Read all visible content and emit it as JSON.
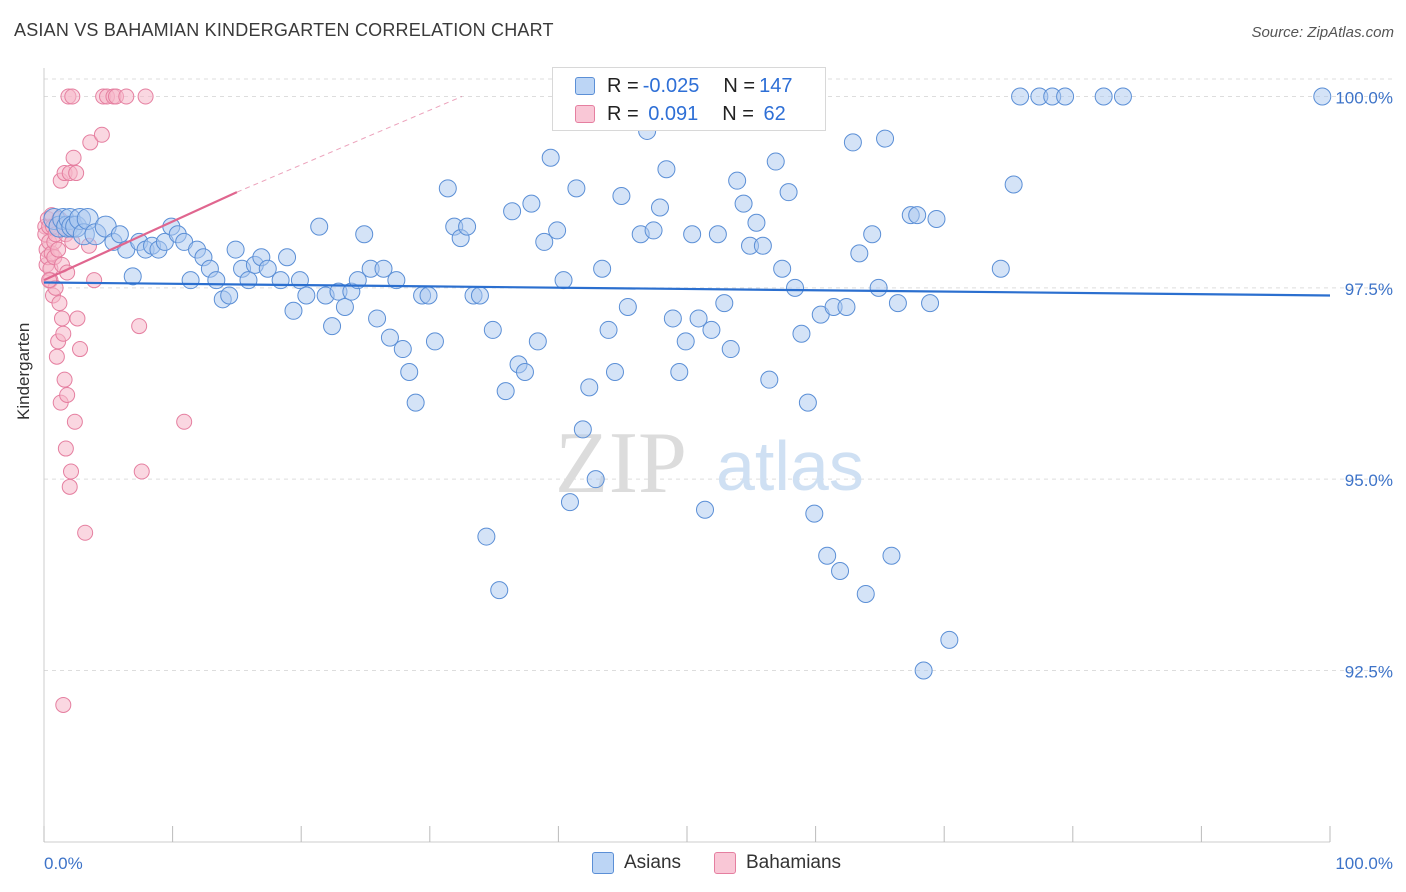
{
  "title": "ASIAN VS BAHAMIAN KINDERGARTEN CORRELATION CHART",
  "source": "Source: ZipAtlas.com",
  "watermark": {
    "zip": "ZIP",
    "atlas": "atlas"
  },
  "legend": {
    "asians": {
      "r_label": "R = ",
      "r_value": "-0.025",
      "n_label": "N = ",
      "n_value": "147"
    },
    "bahamians": {
      "r_label": "R = ",
      "r_value": " 0.091",
      "n_label": "N = ",
      "n_value": " 62"
    }
  },
  "colors": {
    "asian_fill": "#a9c8f0",
    "asian_stroke": "#5b8fd6",
    "asian_line": "#2b6fcf",
    "bahamian_fill": "#f6b6c9",
    "bahamian_stroke": "#e57fa0",
    "bahamian_line": "#e0668f",
    "tick_label": "#3d73c8"
  },
  "chart_data": {
    "type": "scatter",
    "title": "ASIAN VS BAHAMIAN KINDERGARTEN CORRELATION CHART",
    "xlabel": "",
    "ylabel": "Kindergarten",
    "xlim": [
      0,
      100
    ],
    "ylim": [
      90.0,
      100.3
    ],
    "x_tick_labels": [
      "0.0%",
      "100.0%"
    ],
    "y_ticks": [
      92.5,
      95.0,
      97.5,
      100.0
    ],
    "y_tick_labels": [
      "92.5%",
      "95.0%",
      "97.5%",
      "100.0%"
    ],
    "series": [
      {
        "name": "Asians",
        "trend": {
          "x": [
            0,
            100
          ],
          "y": [
            97.57,
            97.4
          ],
          "dashed_extension": false
        },
        "points": [
          [
            0.8,
            98.4
          ],
          [
            1.2,
            98.3
          ],
          [
            1.5,
            98.4
          ],
          [
            1.8,
            98.3
          ],
          [
            2.0,
            98.4
          ],
          [
            2.2,
            98.3
          ],
          [
            2.5,
            98.3
          ],
          [
            2.8,
            98.4
          ],
          [
            3.1,
            98.2
          ],
          [
            3.4,
            98.4
          ],
          [
            4.0,
            98.2
          ],
          [
            4.8,
            98.3
          ],
          [
            5.4,
            98.1
          ],
          [
            5.9,
            98.2
          ],
          [
            6.4,
            98.0
          ],
          [
            6.9,
            97.65
          ],
          [
            7.4,
            98.1
          ],
          [
            7.9,
            98.0
          ],
          [
            8.4,
            98.05
          ],
          [
            8.9,
            98.0
          ],
          [
            9.4,
            98.1
          ],
          [
            9.9,
            98.3
          ],
          [
            10.4,
            98.2
          ],
          [
            10.9,
            98.1
          ],
          [
            11.4,
            97.6
          ],
          [
            11.9,
            98.0
          ],
          [
            12.4,
            97.9
          ],
          [
            12.9,
            97.75
          ],
          [
            13.4,
            97.6
          ],
          [
            13.9,
            97.35
          ],
          [
            14.4,
            97.4
          ],
          [
            14.9,
            98.0
          ],
          [
            15.4,
            97.75
          ],
          [
            15.9,
            97.6
          ],
          [
            16.4,
            97.8
          ],
          [
            16.9,
            97.9
          ],
          [
            17.4,
            97.75
          ],
          [
            18.4,
            97.6
          ],
          [
            18.9,
            97.9
          ],
          [
            19.4,
            97.2
          ],
          [
            19.9,
            97.6
          ],
          [
            20.4,
            97.4
          ],
          [
            21.4,
            98.3
          ],
          [
            21.9,
            97.4
          ],
          [
            22.4,
            97.0
          ],
          [
            22.9,
            97.45
          ],
          [
            23.4,
            97.25
          ],
          [
            23.9,
            97.45
          ],
          [
            24.4,
            97.6
          ],
          [
            24.9,
            98.2
          ],
          [
            25.4,
            97.75
          ],
          [
            25.9,
            97.1
          ],
          [
            26.4,
            97.75
          ],
          [
            26.9,
            96.85
          ],
          [
            27.4,
            97.6
          ],
          [
            27.9,
            96.7
          ],
          [
            28.4,
            96.4
          ],
          [
            28.9,
            96.0
          ],
          [
            29.4,
            97.4
          ],
          [
            29.9,
            97.4
          ],
          [
            30.4,
            96.8
          ],
          [
            31.4,
            98.8
          ],
          [
            31.9,
            98.3
          ],
          [
            32.4,
            98.15
          ],
          [
            32.9,
            98.3
          ],
          [
            33.4,
            97.4
          ],
          [
            33.9,
            97.4
          ],
          [
            34.4,
            94.25
          ],
          [
            34.9,
            96.95
          ],
          [
            35.4,
            93.55
          ],
          [
            35.9,
            96.15
          ],
          [
            36.4,
            98.5
          ],
          [
            36.9,
            96.5
          ],
          [
            37.4,
            96.4
          ],
          [
            37.9,
            98.6
          ],
          [
            38.4,
            96.8
          ],
          [
            38.9,
            98.1
          ],
          [
            39.4,
            99.2
          ],
          [
            39.9,
            98.25
          ],
          [
            40.4,
            97.6
          ],
          [
            40.9,
            94.7
          ],
          [
            41.4,
            98.8
          ],
          [
            41.9,
            95.65
          ],
          [
            42.4,
            96.2
          ],
          [
            42.9,
            95.0
          ],
          [
            43.4,
            97.75
          ],
          [
            43.9,
            96.95
          ],
          [
            44.4,
            96.4
          ],
          [
            44.9,
            98.7
          ],
          [
            45.4,
            97.25
          ],
          [
            46.4,
            98.2
          ],
          [
            46.9,
            99.55
          ],
          [
            47.4,
            98.25
          ],
          [
            47.9,
            98.55
          ],
          [
            48.4,
            99.05
          ],
          [
            48.9,
            97.1
          ],
          [
            49.4,
            96.4
          ],
          [
            49.9,
            96.8
          ],
          [
            50.4,
            98.2
          ],
          [
            50.9,
            97.1
          ],
          [
            51.4,
            94.6
          ],
          [
            51.9,
            96.95
          ],
          [
            52.4,
            98.2
          ],
          [
            52.9,
            97.3
          ],
          [
            53.4,
            96.7
          ],
          [
            53.9,
            98.9
          ],
          [
            54.4,
            98.6
          ],
          [
            54.9,
            98.05
          ],
          [
            55.4,
            98.35
          ],
          [
            55.9,
            98.05
          ],
          [
            56.4,
            96.3
          ],
          [
            56.9,
            99.15
          ],
          [
            57.4,
            97.75
          ],
          [
            57.9,
            98.75
          ],
          [
            58.4,
            97.5
          ],
          [
            58.9,
            96.9
          ],
          [
            59.4,
            96.0
          ],
          [
            59.9,
            94.55
          ],
          [
            60.4,
            97.15
          ],
          [
            60.9,
            94.0
          ],
          [
            61.4,
            97.25
          ],
          [
            61.9,
            93.8
          ],
          [
            62.4,
            97.25
          ],
          [
            62.9,
            99.4
          ],
          [
            63.4,
            97.95
          ],
          [
            63.9,
            93.5
          ],
          [
            64.4,
            98.2
          ],
          [
            64.9,
            97.5
          ],
          [
            65.4,
            99.45
          ],
          [
            65.9,
            94.0
          ],
          [
            66.4,
            97.3
          ],
          [
            67.4,
            98.45
          ],
          [
            67.9,
            98.45
          ],
          [
            68.4,
            92.5
          ],
          [
            68.9,
            97.3
          ],
          [
            69.4,
            98.4
          ],
          [
            70.4,
            92.9
          ],
          [
            74.4,
            97.75
          ],
          [
            75.4,
            98.85
          ],
          [
            75.9,
            100.0
          ],
          [
            77.4,
            100.0
          ],
          [
            78.4,
            100.0
          ],
          [
            79.4,
            100.0
          ],
          [
            82.4,
            100.0
          ],
          [
            83.9,
            100.0
          ],
          [
            99.4,
            100.0
          ]
        ]
      },
      {
        "name": "Bahamians",
        "trend": {
          "x": [
            0,
            15
          ],
          "y": [
            97.6,
            98.75
          ],
          "dashed_extension_to": [
            32.5,
            100.0
          ]
        },
        "points": [
          [
            0.1,
            98.3
          ],
          [
            0.1,
            98.2
          ],
          [
            0.2,
            98.0
          ],
          [
            0.2,
            97.8
          ],
          [
            0.3,
            98.4
          ],
          [
            0.3,
            97.9
          ],
          [
            0.4,
            98.3
          ],
          [
            0.4,
            98.1
          ],
          [
            0.5,
            97.75
          ],
          [
            0.5,
            97.6
          ],
          [
            0.6,
            98.45
          ],
          [
            0.6,
            97.95
          ],
          [
            0.7,
            98.3
          ],
          [
            0.7,
            97.4
          ],
          [
            0.8,
            98.1
          ],
          [
            0.8,
            97.9
          ],
          [
            0.9,
            98.2
          ],
          [
            0.9,
            97.5
          ],
          [
            1.0,
            96.6
          ],
          [
            1.1,
            98.0
          ],
          [
            1.1,
            96.8
          ],
          [
            1.2,
            98.4
          ],
          [
            1.2,
            97.3
          ],
          [
            1.3,
            98.9
          ],
          [
            1.3,
            96.0
          ],
          [
            1.4,
            97.8
          ],
          [
            1.4,
            97.1
          ],
          [
            1.5,
            98.3
          ],
          [
            1.5,
            96.9
          ],
          [
            1.6,
            99.0
          ],
          [
            1.6,
            96.3
          ],
          [
            1.7,
            98.2
          ],
          [
            1.7,
            95.4
          ],
          [
            1.8,
            97.7
          ],
          [
            1.8,
            96.1
          ],
          [
            1.9,
            100.0
          ],
          [
            2.0,
            99.0
          ],
          [
            2.0,
            94.9
          ],
          [
            2.1,
            95.1
          ],
          [
            2.2,
            100.0
          ],
          [
            2.2,
            98.1
          ],
          [
            2.3,
            99.2
          ],
          [
            2.4,
            95.75
          ],
          [
            2.5,
            99.0
          ],
          [
            2.6,
            97.1
          ],
          [
            2.8,
            96.7
          ],
          [
            3.2,
            94.3
          ],
          [
            3.5,
            98.05
          ],
          [
            3.6,
            99.4
          ],
          [
            3.9,
            97.6
          ],
          [
            4.5,
            99.5
          ],
          [
            4.6,
            100.0
          ],
          [
            4.9,
            100.0
          ],
          [
            5.4,
            100.0
          ],
          [
            5.6,
            100.0
          ],
          [
            6.4,
            100.0
          ],
          [
            7.4,
            97.0
          ],
          [
            7.6,
            95.1
          ],
          [
            10.9,
            95.75
          ],
          [
            1.5,
            92.05
          ],
          [
            7.9,
            100.0
          ],
          [
            0.4,
            97.6
          ]
        ]
      }
    ]
  }
}
